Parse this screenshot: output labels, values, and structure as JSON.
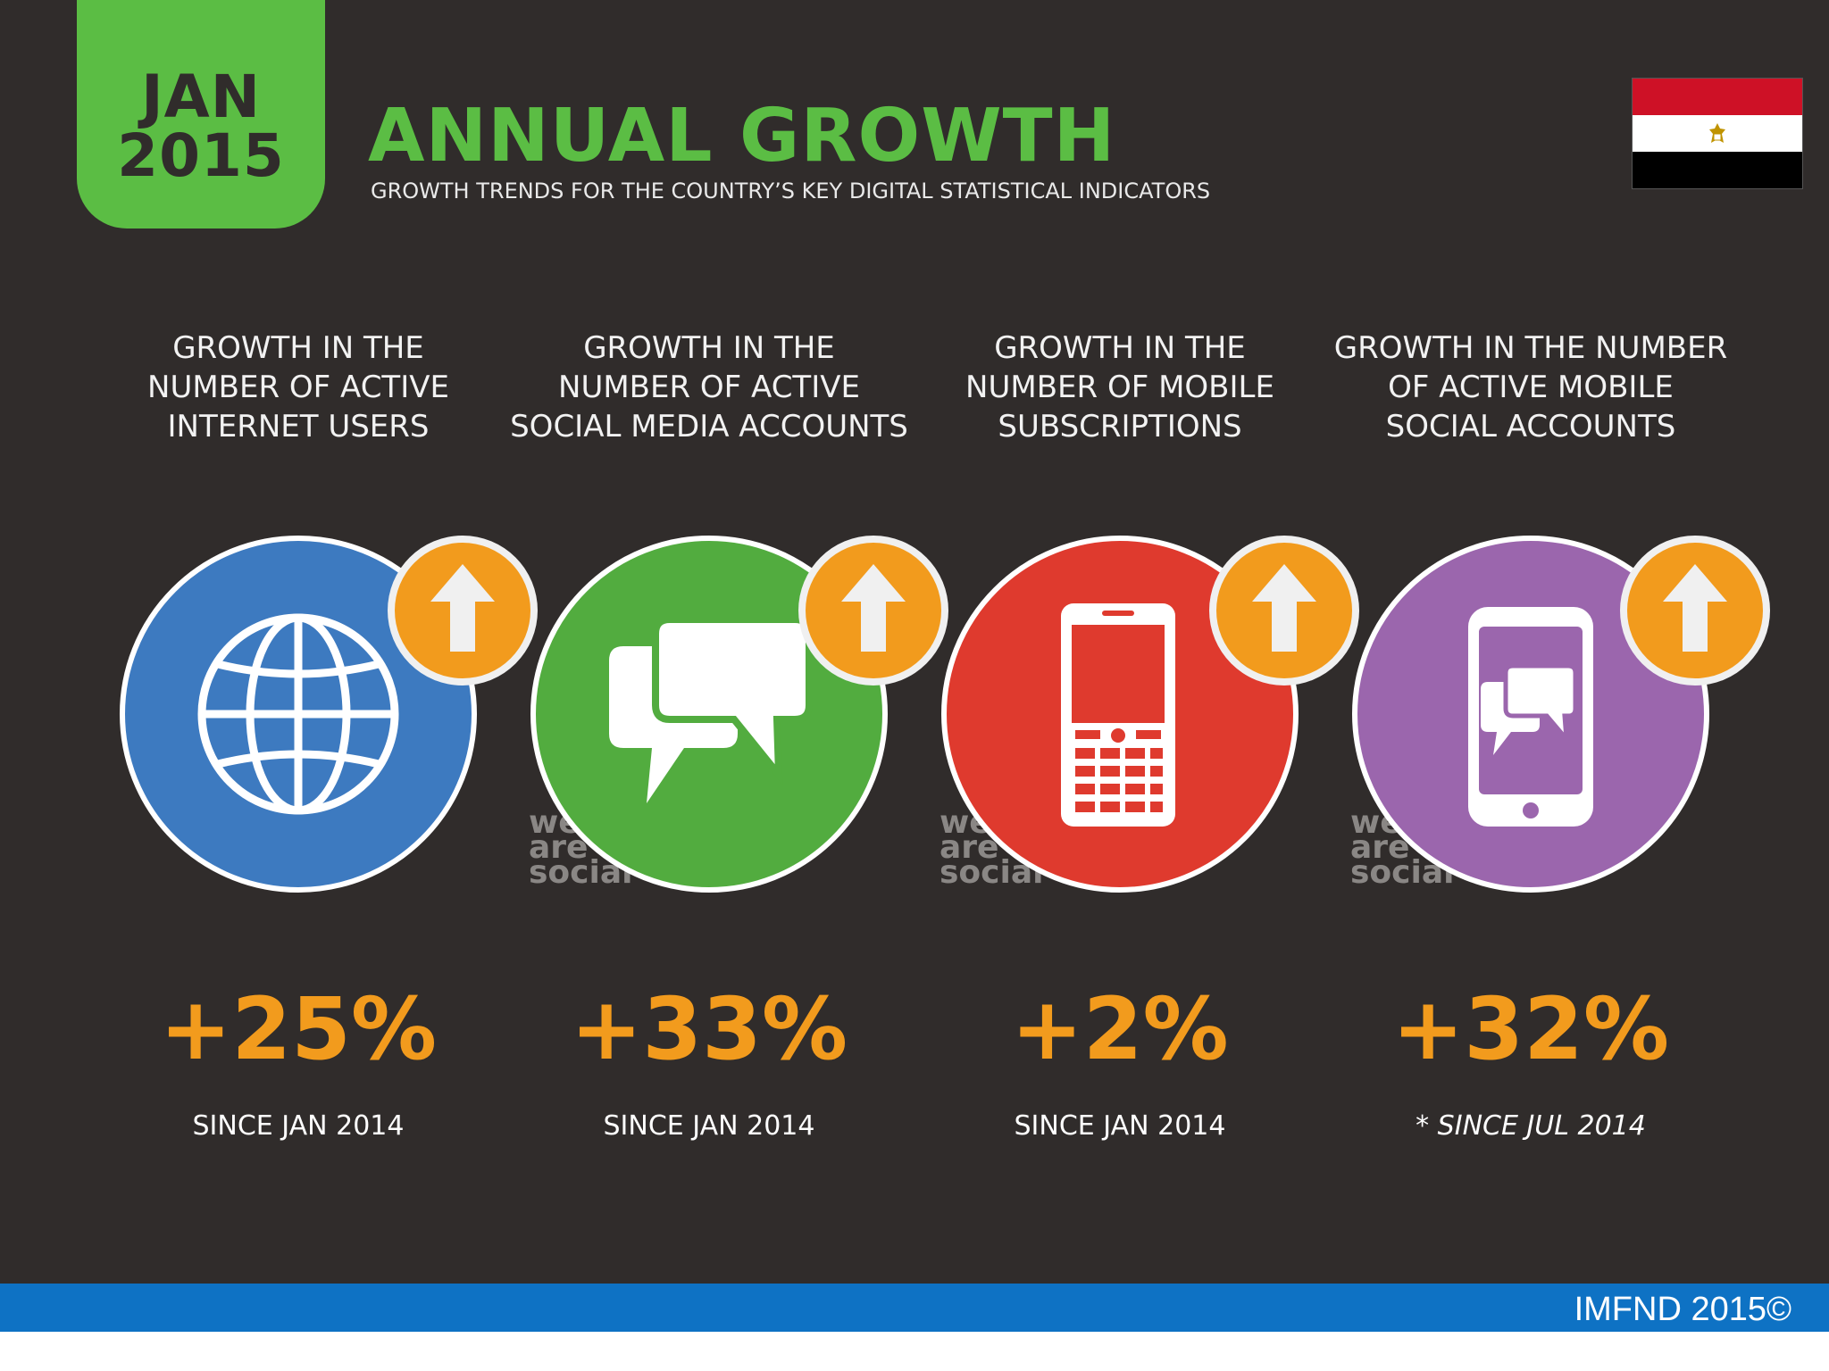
{
  "header": {
    "date_month": "JAN",
    "date_year": "2015",
    "title": "ANNUAL GROWTH",
    "subtitle": "GROWTH TRENDS FOR THE COUNTRY’S KEY DIGITAL STATISTICAL INDICATORS"
  },
  "colors": {
    "background": "#302c2b",
    "accent_green": "#5bbd44",
    "accent_orange": "#f29b1d",
    "footer_blue": "#0e72c4"
  },
  "metrics": [
    {
      "heading": [
        "GROWTH IN THE",
        "NUMBER OF ACTIVE",
        "INTERNET USERS"
      ],
      "icon": "globe-icon",
      "color": "#3d7ac0",
      "value": "+25%",
      "since": "SINCE JAN 2014"
    },
    {
      "heading": [
        "GROWTH IN THE",
        "NUMBER OF ACTIVE",
        "SOCIAL MEDIA ACCOUNTS"
      ],
      "icon": "chat-bubbles-icon",
      "color": "#52ac3f",
      "value": "+33%",
      "since": "SINCE JAN 2014"
    },
    {
      "heading": [
        "GROWTH IN THE",
        "NUMBER OF MOBILE",
        "SUBSCRIPTIONS"
      ],
      "icon": "mobile-phone-icon",
      "color": "#df3a2e",
      "value": "+2%",
      "since": "SINCE JAN 2014"
    },
    {
      "heading": [
        "GROWTH IN THE NUMBER",
        "OF ACTIVE MOBILE",
        "SOCIAL ACCOUNTS"
      ],
      "icon": "smartphone-chat-icon",
      "color": "#9b66ad",
      "value": "+32%",
      "since": "* SINCE JUL 2014"
    }
  ],
  "watermark": [
    "we",
    "are",
    "social"
  ],
  "footer": {
    "text": "IMFND 2015©"
  }
}
